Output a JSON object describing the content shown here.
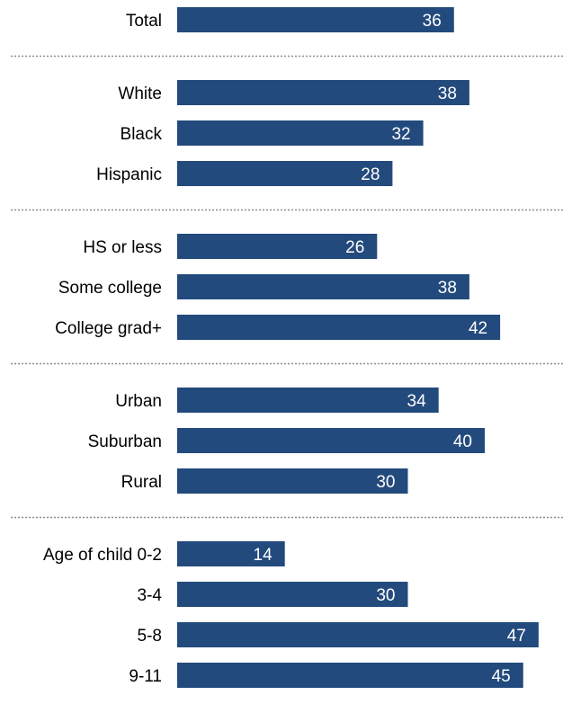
{
  "chart_data": {
    "type": "bar",
    "orientation": "horizontal",
    "bar_color": "#234a7c",
    "value_label_color": "#ffffff",
    "divider_color": "#8c8c8c",
    "xlim": [
      0,
      50
    ],
    "grid": false,
    "legend": "none",
    "groups": [
      {
        "categories": [
          "Total"
        ],
        "values": [
          36
        ]
      },
      {
        "categories": [
          "White",
          "Black",
          "Hispanic"
        ],
        "values": [
          38,
          32,
          28
        ]
      },
      {
        "categories": [
          "HS or less",
          "Some college",
          "College grad+"
        ],
        "values": [
          26,
          38,
          42
        ]
      },
      {
        "categories": [
          "Urban",
          "Suburban",
          "Rural"
        ],
        "values": [
          34,
          40,
          30
        ]
      },
      {
        "categories": [
          "Age of child 0-2",
          "3-4",
          "5-8",
          "9-11"
        ],
        "values": [
          14,
          30,
          47,
          45
        ]
      }
    ]
  }
}
